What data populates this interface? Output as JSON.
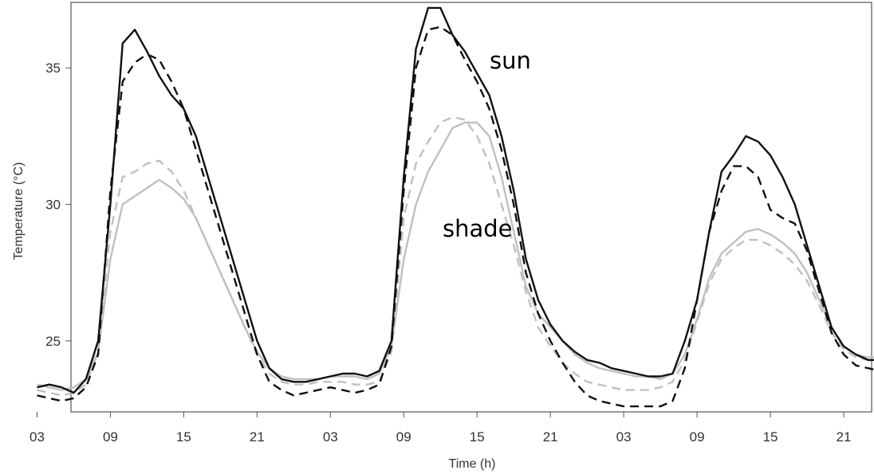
{
  "chart_data": {
    "type": "line",
    "xlabel": "Time (h)",
    "ylabel": "Temperature (°C)",
    "ylim": [
      22.4,
      37.4
    ],
    "xlim": [
      0,
      72
    ],
    "x_ticks": [
      3,
      9,
      15,
      21,
      27,
      33,
      39,
      45,
      51,
      57,
      63,
      69
    ],
    "x_tick_labels": [
      "03",
      "09",
      "15",
      "21",
      "03",
      "09",
      "15",
      "21",
      "03",
      "09",
      "15",
      "21"
    ],
    "y_ticks": [
      25,
      30,
      35
    ],
    "y_tick_labels": [
      "25",
      "30",
      "35"
    ],
    "grid": false,
    "annotations": [
      {
        "text": "sun",
        "x": 37,
        "y": 36.1
      },
      {
        "text": "shade",
        "x": 33.5,
        "y": 29.5
      }
    ],
    "series": [
      {
        "color": "#111111",
        "dash": "solid",
        "x": [
          3,
          4,
          5,
          6,
          7,
          8,
          9,
          10,
          11,
          12,
          13,
          14,
          15,
          16,
          17,
          18,
          19,
          20,
          21,
          22,
          23,
          24,
          25,
          26,
          27,
          28,
          29,
          30,
          31,
          32,
          33,
          34,
          35,
          36,
          37,
          38,
          39,
          40,
          41,
          42,
          43,
          44,
          45,
          46,
          47,
          48,
          49,
          50,
          51,
          52,
          53,
          54,
          55,
          56,
          57,
          58,
          59,
          60,
          61,
          62,
          63,
          64,
          65,
          66,
          67,
          68,
          69,
          70,
          71,
          72,
          73
        ],
        "y": [
          23.3,
          23.4,
          23.3,
          23.1,
          23.6,
          25.0,
          30.0,
          35.9,
          36.4,
          35.6,
          34.7,
          34.0,
          33.5,
          32.5,
          31.0,
          29.5,
          28.0,
          26.5,
          25.0,
          24.0,
          23.6,
          23.5,
          23.5,
          23.6,
          23.7,
          23.8,
          23.8,
          23.7,
          23.9,
          25.0,
          31.0,
          35.7,
          37.2,
          37.2,
          36.2,
          35.6,
          34.8,
          34.0,
          32.5,
          30.5,
          28.0,
          26.5,
          25.6,
          25.0,
          24.6,
          24.3,
          24.2,
          24.0,
          23.9,
          23.8,
          23.7,
          23.7,
          23.8,
          25.0,
          26.5,
          29.0,
          31.2,
          31.8,
          32.5,
          32.3,
          31.8,
          31.0,
          30.0,
          28.5,
          27.0,
          25.5,
          24.8,
          24.5,
          24.3,
          24.3,
          24.2
        ]
      },
      {
        "color": "#111111",
        "dash": "dashed",
        "x": [
          3,
          4,
          5,
          6,
          7,
          8,
          9,
          10,
          11,
          12,
          13,
          14,
          15,
          16,
          17,
          18,
          19,
          20,
          21,
          22,
          23,
          24,
          25,
          26,
          27,
          28,
          29,
          30,
          31,
          32,
          33,
          34,
          35,
          36,
          37,
          38,
          39,
          40,
          41,
          42,
          43,
          44,
          45,
          46,
          47,
          48,
          49,
          50,
          51,
          52,
          53,
          54,
          55,
          56,
          57,
          58,
          59,
          60,
          61,
          62,
          63,
          64,
          65,
          66,
          67,
          68,
          69,
          70,
          71,
          72,
          73
        ],
        "y": [
          23.0,
          22.9,
          22.8,
          22.9,
          23.3,
          24.5,
          30.5,
          34.5,
          35.2,
          35.5,
          35.3,
          34.5,
          33.5,
          32.0,
          30.5,
          29.0,
          27.5,
          26.0,
          24.5,
          23.5,
          23.2,
          23.0,
          23.1,
          23.2,
          23.3,
          23.2,
          23.1,
          23.2,
          23.4,
          24.8,
          30.5,
          35.0,
          36.4,
          36.5,
          36.2,
          35.3,
          34.5,
          33.5,
          32.0,
          30.0,
          27.5,
          26.0,
          25.0,
          24.2,
          23.5,
          23.0,
          22.8,
          22.7,
          22.6,
          22.6,
          22.6,
          22.6,
          22.8,
          24.0,
          26.5,
          29.0,
          30.5,
          31.4,
          31.4,
          31.0,
          29.8,
          29.5,
          29.3,
          28.3,
          26.8,
          25.3,
          24.5,
          24.1,
          24.0,
          23.9,
          23.8
        ]
      },
      {
        "color": "#c0c0c0",
        "dash": "solid",
        "x": [
          3,
          4,
          5,
          6,
          7,
          8,
          9,
          10,
          11,
          12,
          13,
          14,
          15,
          16,
          17,
          18,
          19,
          20,
          21,
          22,
          23,
          24,
          25,
          26,
          27,
          28,
          29,
          30,
          31,
          32,
          33,
          34,
          35,
          36,
          37,
          38,
          39,
          40,
          41,
          42,
          43,
          44,
          45,
          46,
          47,
          48,
          49,
          50,
          51,
          52,
          53,
          54,
          55,
          56,
          57,
          58,
          59,
          60,
          61,
          62,
          63,
          64,
          65,
          66,
          67,
          68,
          69,
          70,
          71,
          72,
          73
        ],
        "y": [
          23.4,
          23.3,
          23.2,
          23.3,
          23.6,
          24.6,
          28.0,
          30.0,
          30.3,
          30.6,
          30.9,
          30.6,
          30.2,
          29.5,
          28.5,
          27.5,
          26.5,
          25.5,
          24.6,
          24.0,
          23.7,
          23.6,
          23.6,
          23.6,
          23.7,
          23.7,
          23.7,
          23.6,
          23.8,
          24.8,
          28.0,
          30.0,
          31.2,
          32.0,
          32.8,
          33.0,
          33.0,
          32.5,
          31.0,
          29.0,
          27.0,
          26.0,
          25.5,
          25.0,
          24.5,
          24.2,
          24.0,
          23.9,
          23.8,
          23.7,
          23.7,
          23.6,
          23.8,
          24.5,
          25.8,
          27.3,
          28.2,
          28.6,
          29.0,
          29.1,
          28.9,
          28.6,
          28.2,
          27.5,
          26.5,
          25.5,
          24.8,
          24.5,
          24.4,
          24.4,
          24.3
        ]
      },
      {
        "color": "#c0c0c0",
        "dash": "dashed",
        "x": [
          3,
          4,
          5,
          6,
          7,
          8,
          9,
          10,
          11,
          12,
          13,
          14,
          15,
          16,
          17,
          18,
          19,
          20,
          21,
          22,
          23,
          24,
          25,
          26,
          27,
          28,
          29,
          30,
          31,
          32,
          33,
          34,
          35,
          36,
          37,
          38,
          39,
          40,
          41,
          42,
          43,
          44,
          45,
          46,
          47,
          48,
          49,
          50,
          51,
          52,
          53,
          54,
          55,
          56,
          57,
          58,
          59,
          60,
          61,
          62,
          63,
          64,
          65,
          66,
          67,
          68,
          69,
          70,
          71,
          72,
          73
        ],
        "y": [
          23.2,
          23.1,
          23.0,
          23.1,
          23.4,
          24.6,
          29.0,
          31.0,
          31.2,
          31.5,
          31.6,
          31.2,
          30.5,
          29.5,
          28.5,
          27.5,
          26.5,
          25.5,
          24.5,
          23.8,
          23.5,
          23.4,
          23.4,
          23.5,
          23.5,
          23.5,
          23.4,
          23.4,
          23.5,
          24.6,
          29.5,
          31.5,
          32.3,
          33.0,
          33.2,
          33.1,
          32.5,
          31.5,
          30.0,
          28.5,
          26.8,
          25.5,
          24.8,
          24.2,
          23.8,
          23.5,
          23.4,
          23.3,
          23.2,
          23.2,
          23.2,
          23.3,
          23.5,
          24.3,
          25.7,
          27.1,
          28.0,
          28.4,
          28.7,
          28.7,
          28.5,
          28.2,
          27.8,
          27.2,
          26.3,
          25.3,
          24.7,
          24.4,
          24.3,
          24.3,
          24.2
        ]
      }
    ]
  }
}
